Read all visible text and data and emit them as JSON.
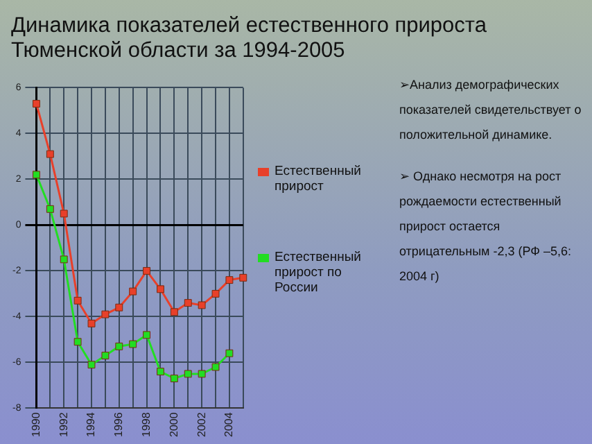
{
  "chart_data": {
    "type": "line",
    "title": "Динамика показателей естественного прироста Тюменской области за 1994-2005",
    "categories": [
      "1990",
      null,
      "1992",
      null,
      "1994",
      null,
      "1996",
      null,
      "1998",
      null,
      "2000",
      null,
      "2002",
      null,
      "2004",
      null
    ],
    "series": [
      {
        "name": "Естественный прирост",
        "color": "#e8402a",
        "values": [
          5.3,
          3.1,
          0.5,
          -3.3,
          -4.3,
          -3.9,
          -3.6,
          -2.9,
          -2.0,
          -2.8,
          -3.8,
          -3.4,
          -3.5,
          -3.0,
          -2.4,
          -2.3
        ]
      },
      {
        "name": "Естественный прирост по России",
        "color": "#22dd22",
        "values": [
          2.2,
          0.7,
          -1.5,
          -5.1,
          -6.1,
          -5.7,
          -5.3,
          -5.2,
          -4.8,
          -6.4,
          -6.7,
          -6.5,
          -6.5,
          -6.2,
          -5.6,
          null
        ]
      }
    ],
    "ylim": [
      -8,
      6
    ],
    "yticks": [
      -8,
      -6,
      -4,
      -2,
      0,
      2,
      4,
      6
    ],
    "grid": true,
    "legend": "right",
    "marker": "square",
    "annotations": [
      "➢Анализ демографических показателей свидетельствует о положительной динамике.",
      "➢ Однако несмотря на рост рождаемости естественный прирост остается отрицательным -2,3 (РФ –5,6: 2004 г)"
    ]
  }
}
